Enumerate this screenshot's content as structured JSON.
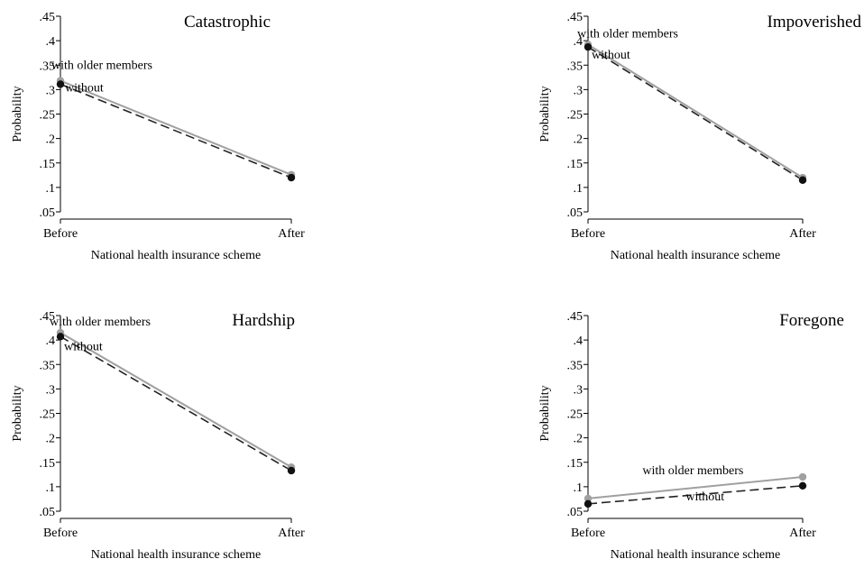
{
  "chart_data": [
    {
      "type": "line",
      "title": "Catastrophic",
      "xlabel": "National health insurance scheme",
      "ylabel": "Probability",
      "categories": [
        "Before",
        "After"
      ],
      "ylim": [
        0.05,
        0.45
      ],
      "yticks": [
        0.05,
        0.1,
        0.15,
        0.2,
        0.25,
        0.3,
        0.35,
        0.4,
        0.45
      ],
      "ytick_labels": [
        ".05",
        ".1",
        ".15",
        ".2",
        ".25",
        ".3",
        ".35",
        ".4",
        ".45"
      ],
      "grid": false,
      "series": [
        {
          "name": "with older members",
          "values": [
            0.318,
            0.126
          ],
          "color": "#a0a0a0",
          "style": "solid",
          "marker_color": "#a0a0a0"
        },
        {
          "name": "without",
          "values": [
            0.311,
            0.12
          ],
          "color": "#222222",
          "style": "dashed",
          "marker_color": "#111111"
        }
      ]
    },
    {
      "type": "line",
      "title": "Impoverished",
      "xlabel": "National health insurance scheme",
      "ylabel": "Probability",
      "categories": [
        "Before",
        "After"
      ],
      "ylim": [
        0.05,
        0.45
      ],
      "yticks": [
        0.05,
        0.1,
        0.15,
        0.2,
        0.25,
        0.3,
        0.35,
        0.4,
        0.45
      ],
      "ytick_labels": [
        ".05",
        ".1",
        ".15",
        ".2",
        ".25",
        ".3",
        ".35",
        ".4",
        ".45"
      ],
      "grid": false,
      "series": [
        {
          "name": "with older members",
          "values": [
            0.392,
            0.12
          ],
          "color": "#a0a0a0",
          "style": "solid",
          "marker_color": "#a0a0a0"
        },
        {
          "name": "without",
          "values": [
            0.387,
            0.115
          ],
          "color": "#222222",
          "style": "dashed",
          "marker_color": "#111111"
        }
      ]
    },
    {
      "type": "line",
      "title": "Hardship",
      "xlabel": "National health insurance scheme",
      "ylabel": "Probability",
      "categories": [
        "Before",
        "After"
      ],
      "ylim": [
        0.05,
        0.45
      ],
      "yticks": [
        0.05,
        0.1,
        0.15,
        0.2,
        0.25,
        0.3,
        0.35,
        0.4,
        0.45
      ],
      "ytick_labels": [
        ".05",
        ".1",
        ".15",
        ".2",
        ".25",
        ".3",
        ".35",
        ".4",
        ".45"
      ],
      "grid": false,
      "series": [
        {
          "name": "with older members",
          "values": [
            0.415,
            0.14
          ],
          "color": "#a0a0a0",
          "style": "solid",
          "marker_color": "#a0a0a0"
        },
        {
          "name": "without",
          "values": [
            0.407,
            0.133
          ],
          "color": "#222222",
          "style": "dashed",
          "marker_color": "#111111"
        }
      ]
    },
    {
      "type": "line",
      "title": "Foregone",
      "xlabel": "National health insurance scheme",
      "ylabel": "Probability",
      "categories": [
        "Before",
        "After"
      ],
      "ylim": [
        0.05,
        0.45
      ],
      "yticks": [
        0.05,
        0.1,
        0.15,
        0.2,
        0.25,
        0.3,
        0.35,
        0.4,
        0.45
      ],
      "ytick_labels": [
        ".05",
        ".1",
        ".15",
        ".2",
        ".25",
        ".3",
        ".35",
        ".4",
        ".45"
      ],
      "grid": false,
      "series": [
        {
          "name": "with older members",
          "values": [
            0.076,
            0.12
          ],
          "color": "#a0a0a0",
          "style": "solid",
          "marker_color": "#a0a0a0"
        },
        {
          "name": "without",
          "values": [
            0.065,
            0.102
          ],
          "color": "#222222",
          "style": "dashed",
          "marker_color": "#111111"
        }
      ]
    }
  ]
}
